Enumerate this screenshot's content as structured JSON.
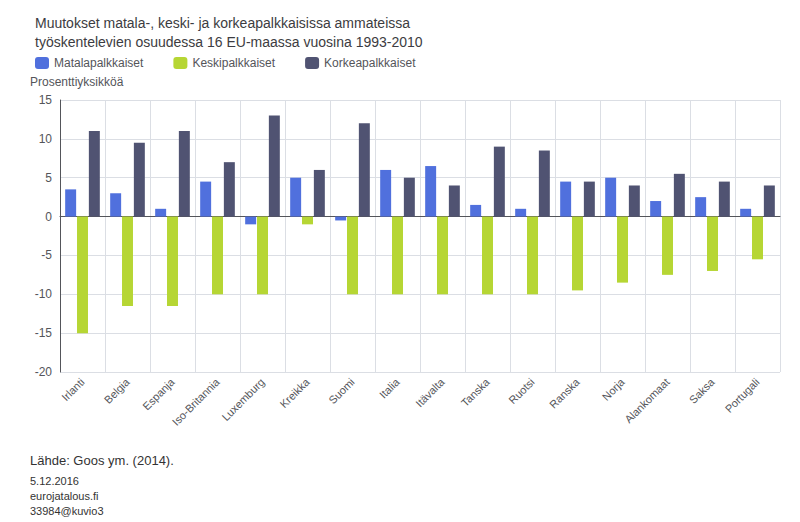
{
  "chart_data": {
    "type": "bar",
    "title": "Muutokset matala-, keski- ja korkeapalkkaisissa ammateissa\ntyöskentelevien osuudessa 16 EU-maassa vuosina 1993-2010",
    "ylabel": "Prosenttiyksikköä",
    "categories": [
      "Irlanti",
      "Belgia",
      "Espanja",
      "Iso-Britannia",
      "Luxemburg",
      "Kreikka",
      "Suomi",
      "Italia",
      "Itävalta",
      "Tanska",
      "Ruotsi",
      "Ranska",
      "Norja",
      "Alankomaat",
      "Saksa",
      "Portugali"
    ],
    "series": [
      {
        "name": "Matalapalkkaiset",
        "values": [
          3.5,
          3.0,
          1.0,
          4.5,
          -1.0,
          5.0,
          -0.5,
          6.0,
          6.5,
          1.5,
          1.0,
          4.5,
          5.0,
          2.0,
          2.5,
          1.0
        ]
      },
      {
        "name": "Keskipalkkaiset",
        "values": [
          -15.0,
          -11.5,
          -11.5,
          -10.0,
          -10.0,
          -1.0,
          -10.0,
          -10.0,
          -10.0,
          -10.0,
          -10.0,
          -9.5,
          -8.5,
          -7.5,
          -7.0,
          -5.5
        ]
      },
      {
        "name": "Korkeapalkkaiset",
        "values": [
          11.0,
          9.5,
          11.0,
          7.0,
          13.0,
          6.0,
          12.0,
          5.0,
          4.0,
          9.0,
          8.5,
          4.5,
          4.0,
          5.5,
          4.5,
          4.0
        ]
      }
    ],
    "ylim": [
      -20,
      15
    ],
    "yticks": [
      -20,
      -15,
      -10,
      -5,
      0,
      5,
      10,
      15
    ],
    "grid": true,
    "legend": "upper left",
    "annotations": [
      "Lähde: Goos ym. (2014).",
      "5.12.2016",
      "eurojatalous.fi",
      "33984@kuvio3"
    ]
  }
}
